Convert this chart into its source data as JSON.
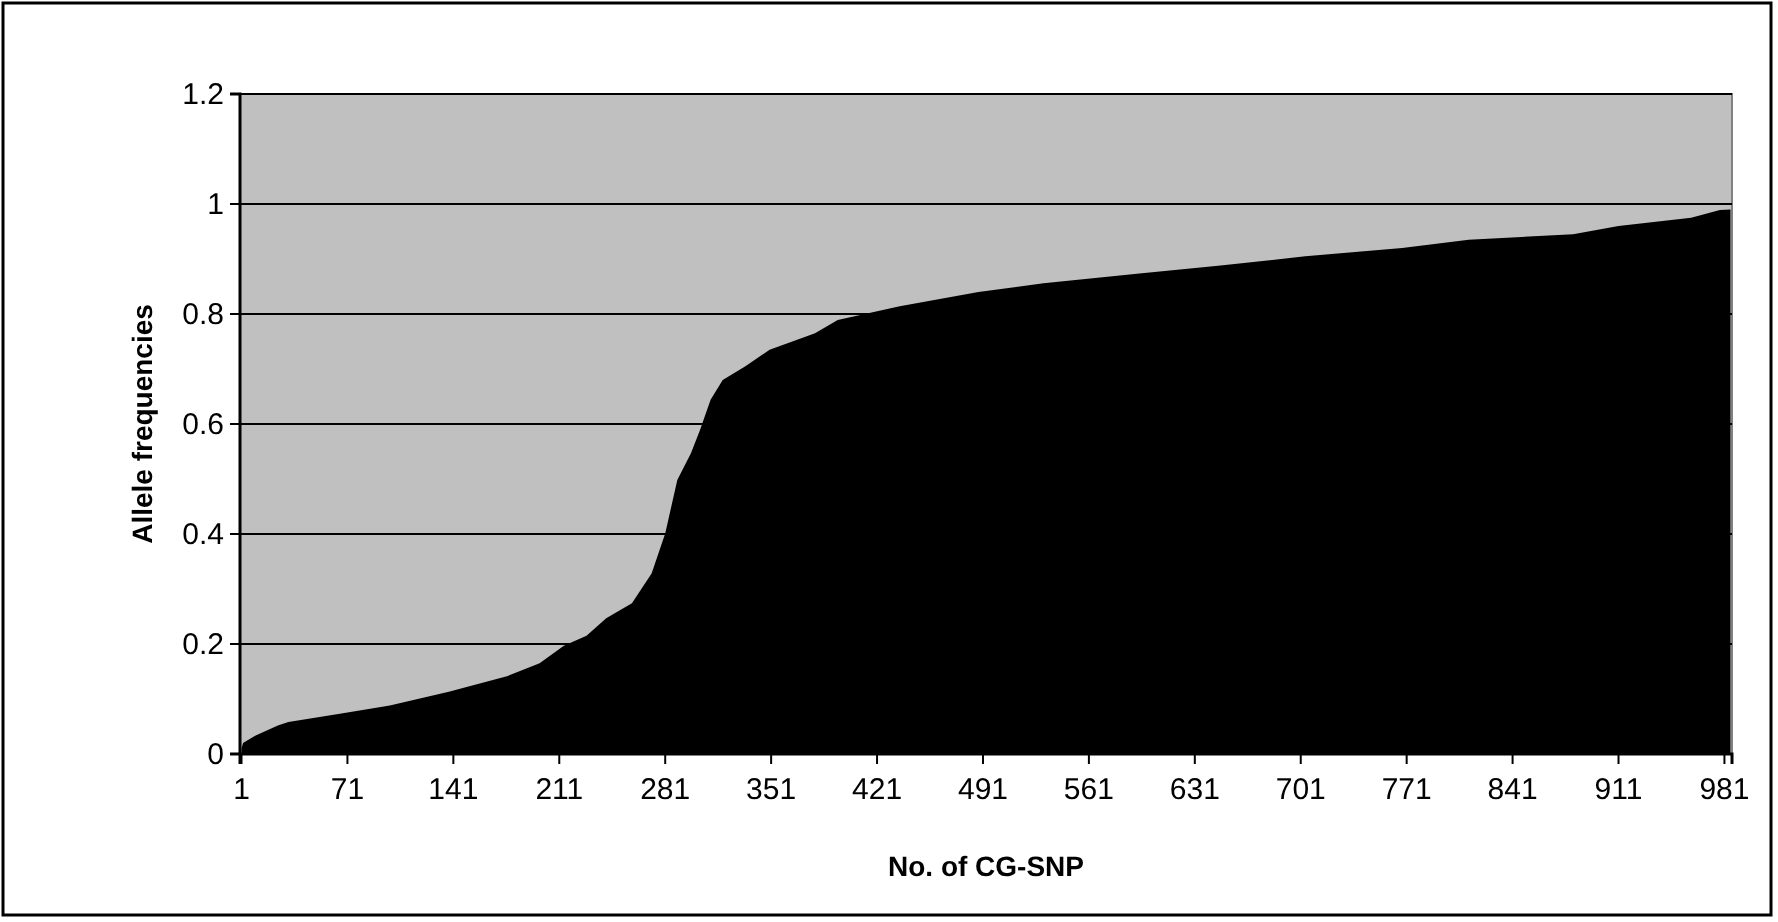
{
  "chart_data": {
    "type": "area",
    "xlabel": "No. of CG-SNP",
    "ylabel": "Allele frequencies",
    "color": "#000000",
    "x": [
      1,
      2,
      10,
      25,
      32,
      68,
      99,
      138,
      177,
      198,
      214,
      229,
      242,
      259,
      272,
      281,
      289,
      298,
      304,
      311,
      319,
      334,
      350,
      380,
      395,
      436,
      488,
      531,
      596,
      648,
      704,
      768,
      812,
      881,
      911,
      959,
      978,
      985
    ],
    "values": [
      0.01,
      0.02,
      0.033,
      0.052,
      0.058,
      0.074,
      0.088,
      0.113,
      0.142,
      0.165,
      0.197,
      0.215,
      0.247,
      0.274,
      0.328,
      0.401,
      0.498,
      0.547,
      0.589,
      0.644,
      0.68,
      0.705,
      0.735,
      0.765,
      0.789,
      0.814,
      0.84,
      0.856,
      0.874,
      0.888,
      0.905,
      0.92,
      0.935,
      0.945,
      0.96,
      0.975,
      0.989,
      0.99
    ],
    "xlim": [
      0,
      986
    ],
    "xticks": [
      1,
      71,
      141,
      211,
      281,
      351,
      421,
      491,
      561,
      631,
      701,
      771,
      841,
      911,
      981
    ],
    "ylim": [
      0,
      1.2
    ],
    "yticks": [
      0,
      0.2,
      0.4,
      0.6,
      0.8,
      1,
      1.2
    ],
    "grid": "y"
  }
}
